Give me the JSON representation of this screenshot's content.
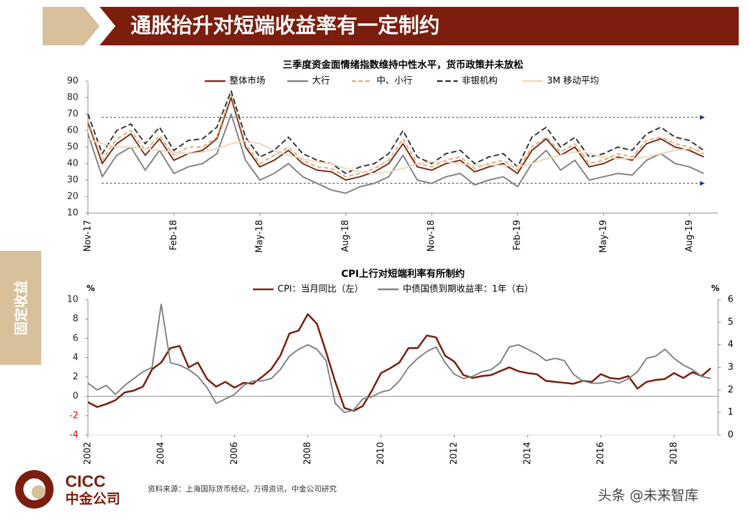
{
  "header": {
    "title": "通胀抬升对短端收益率有一定制约"
  },
  "side_label": "固定收益",
  "chart_data": [
    {
      "type": "line",
      "title": "三季度资金面情绪指数维持中性水平，货币政策并未放松",
      "categories": [
        "Nov-17",
        null,
        null,
        null,
        null,
        null,
        "Feb-18",
        null,
        null,
        null,
        null,
        null,
        "May-18",
        null,
        null,
        null,
        null,
        null,
        "Aug-18",
        null,
        null,
        null,
        null,
        null,
        "Nov-18",
        null,
        null,
        null,
        null,
        null,
        "Feb-19",
        null,
        null,
        null,
        null,
        null,
        "May-19",
        null,
        null,
        null,
        null,
        null,
        "Aug-19",
        null
      ],
      "series": [
        {
          "name": "整体市场",
          "color": "#7b2a10",
          "dash": "none",
          "values": [
            65,
            40,
            52,
            58,
            45,
            55,
            42,
            46,
            48,
            55,
            80,
            50,
            38,
            42,
            48,
            40,
            36,
            35,
            30,
            32,
            35,
            40,
            52,
            38,
            36,
            40,
            42,
            35,
            38,
            40,
            34,
            48,
            55,
            45,
            50,
            38,
            40,
            44,
            42,
            52,
            55,
            50,
            48,
            44
          ]
        },
        {
          "name": "大行",
          "color": "#808080",
          "dash": "none",
          "values": [
            58,
            32,
            45,
            50,
            36,
            48,
            34,
            38,
            40,
            46,
            70,
            42,
            30,
            34,
            40,
            32,
            28,
            24,
            22,
            26,
            28,
            32,
            45,
            30,
            28,
            32,
            34,
            27,
            30,
            32,
            26,
            40,
            48,
            36,
            42,
            30,
            32,
            34,
            33,
            42,
            46,
            40,
            38,
            34
          ]
        },
        {
          "name": "中、小行",
          "color": "#e3aa78",
          "dash": "6 4",
          "values": [
            66,
            42,
            55,
            60,
            48,
            57,
            45,
            50,
            50,
            56,
            82,
            52,
            40,
            45,
            50,
            42,
            38,
            37,
            32,
            34,
            37,
            42,
            55,
            40,
            38,
            42,
            44,
            37,
            40,
            42,
            36,
            50,
            56,
            47,
            52,
            40,
            42,
            46,
            44,
            54,
            56,
            52,
            50,
            46
          ]
        },
        {
          "name": "非银机构",
          "color": "#333333",
          "dash": "8 4",
          "values": [
            70,
            46,
            60,
            64,
            52,
            62,
            48,
            54,
            55,
            62,
            84,
            56,
            44,
            48,
            56,
            46,
            42,
            40,
            34,
            38,
            40,
            46,
            60,
            44,
            40,
            46,
            48,
            40,
            44,
            46,
            38,
            56,
            62,
            50,
            56,
            44,
            46,
            50,
            48,
            58,
            62,
            56,
            54,
            48
          ]
        },
        {
          "name": "3M 移动平均",
          "color": "#f0d6b8",
          "dash": "none",
          "values": [
            55,
            52,
            50,
            50,
            49,
            48,
            47,
            46,
            47,
            49,
            52,
            54,
            52,
            48,
            45,
            43,
            41,
            40,
            37,
            35,
            34,
            35,
            37,
            40,
            41,
            41,
            40,
            39,
            39,
            39,
            38,
            40,
            43,
            45,
            47,
            46,
            44,
            43,
            43,
            44,
            46,
            48,
            49,
            48
          ]
        }
      ],
      "reference_lines": [
        68,
        28
      ],
      "ylim": [
        10,
        90
      ],
      "yticks": [
        10,
        20,
        30,
        40,
        50,
        60,
        70,
        80,
        90
      ]
    },
    {
      "type": "line",
      "title": "CPI上行对短端利率有所制约",
      "ylabel": "%",
      "y2label": "%",
      "x": [
        2002,
        2002.25,
        2002.5,
        2002.75,
        2003,
        2003.25,
        2003.5,
        2003.75,
        2004,
        2004.25,
        2004.5,
        2004.75,
        2005,
        2005.25,
        2005.5,
        2005.75,
        2006,
        2006.25,
        2006.5,
        2006.75,
        2007,
        2007.25,
        2007.5,
        2007.75,
        2008,
        2008.25,
        2008.5,
        2008.75,
        2009,
        2009.25,
        2009.5,
        2009.75,
        2010,
        2010.25,
        2010.5,
        2010.75,
        2011,
        2011.25,
        2011.5,
        2011.75,
        2012,
        2012.25,
        2012.5,
        2012.75,
        2013,
        2013.25,
        2013.5,
        2013.75,
        2014,
        2014.25,
        2014.5,
        2014.75,
        2015,
        2015.25,
        2015.5,
        2015.75,
        2016,
        2016.25,
        2016.5,
        2016.75,
        2017,
        2017.25,
        2017.5,
        2017.75,
        2018,
        2018.25,
        2018.5,
        2018.75,
        2019
      ],
      "series": [
        {
          "name": "CPI：当月同比（左）",
          "color": "#7b1e0e",
          "axis": "y",
          "values": [
            -0.6,
            -1.1,
            -0.8,
            -0.4,
            0.4,
            0.6,
            1.0,
            2.8,
            3.5,
            5.0,
            5.2,
            3.0,
            3.5,
            1.8,
            1.0,
            1.5,
            0.9,
            1.4,
            1.3,
            2.0,
            2.8,
            4.2,
            6.5,
            6.8,
            8.5,
            7.5,
            4.6,
            1.5,
            -1.2,
            -1.5,
            -1.0,
            0.6,
            2.4,
            2.9,
            3.5,
            5.0,
            5.0,
            6.3,
            6.1,
            4.2,
            3.6,
            2.2,
            1.9,
            2.1,
            2.2,
            2.6,
            3.0,
            2.6,
            2.4,
            2.3,
            1.6,
            1.5,
            1.4,
            1.3,
            1.6,
            1.5,
            2.3,
            1.9,
            1.8,
            2.1,
            0.8,
            1.5,
            1.7,
            1.8,
            2.4,
            1.9,
            2.5,
            2.1,
            2.9
          ]
        },
        {
          "name": "中债国债到期收益率：1年（右）",
          "color": "#808080",
          "axis": "y2",
          "values": [
            2.3,
            2.0,
            2.2,
            1.8,
            2.2,
            2.5,
            2.8,
            3.0,
            5.8,
            3.2,
            3.1,
            2.9,
            2.6,
            2.1,
            1.4,
            1.6,
            1.8,
            2.2,
            2.4,
            2.4,
            2.5,
            2.9,
            3.5,
            3.8,
            4.0,
            3.8,
            3.3,
            1.4,
            1.0,
            1.1,
            1.6,
            1.7,
            1.9,
            2.0,
            2.4,
            3.0,
            3.4,
            3.7,
            3.9,
            3.2,
            2.7,
            2.5,
            2.6,
            2.8,
            2.9,
            3.2,
            3.9,
            4.0,
            3.8,
            3.6,
            3.3,
            3.4,
            3.3,
            2.7,
            2.4,
            2.3,
            2.3,
            2.4,
            2.3,
            2.5,
            2.8,
            3.4,
            3.5,
            3.8,
            3.4,
            3.1,
            2.9,
            2.6,
            2.5
          ]
        }
      ],
      "xlim": [
        2002,
        2019.2
      ],
      "xticks": [
        2002,
        2004,
        2006,
        2008,
        2010,
        2012,
        2014,
        2016,
        2018
      ],
      "ylim": [
        -4,
        10
      ],
      "yticks": [
        -4,
        -2,
        0,
        2,
        4,
        6,
        8,
        10
      ],
      "negative_tick_color": "#e00000",
      "y2lim": [
        0,
        6
      ],
      "y2ticks": [
        0,
        1,
        2,
        3,
        4,
        5,
        6
      ]
    }
  ],
  "footer": {
    "logo": "CICC",
    "logo_cn": "中金公司",
    "source": "资料来源：上海国际货币经纪，万得资讯，中金公司研究",
    "watermark": "头条 @未来智库"
  }
}
